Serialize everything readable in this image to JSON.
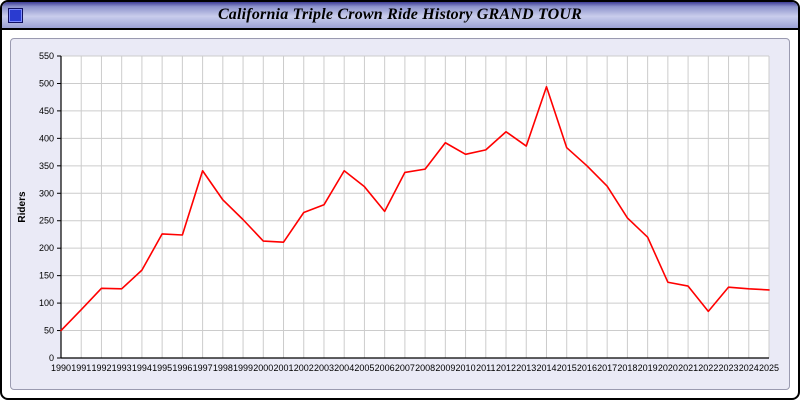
{
  "header": {
    "title": "California Triple Crown Ride History GRAND TOUR",
    "icon": "blue-square-app-icon"
  },
  "chart_data": {
    "type": "line",
    "title": "California Triple Crown Ride History GRAND TOUR",
    "xlabel": "",
    "ylabel": "Riders",
    "ylim": [
      0,
      550
    ],
    "ytick_step": 50,
    "grid": true,
    "legend": "none",
    "categories": [
      1990,
      1991,
      1992,
      1993,
      1994,
      1995,
      1996,
      1997,
      1998,
      1999,
      2000,
      2001,
      2002,
      2003,
      2004,
      2005,
      2006,
      2007,
      2008,
      2009,
      2010,
      2011,
      2012,
      2013,
      2014,
      2015,
      2016,
      2017,
      2018,
      2019,
      2020,
      2021,
      2022,
      2023,
      2024,
      2025
    ],
    "series": [
      {
        "name": "Riders",
        "values": [
          50,
          88,
          127,
          126,
          160,
          226,
          224,
          341,
          288,
          252,
          213,
          211,
          265,
          279,
          341,
          312,
          267,
          338,
          344,
          392,
          371,
          379,
          412,
          386,
          494,
          383,
          350,
          313,
          255,
          220,
          138,
          131,
          85,
          129,
          126,
          124
        ]
      }
    ],
    "colors": {
      "line": "#ff0000",
      "grid": "#cccccc",
      "plot_bg": "#ffffff",
      "panel_bg": "#eaeaf6",
      "axis": "#000000",
      "tick_text": "#000000"
    }
  }
}
